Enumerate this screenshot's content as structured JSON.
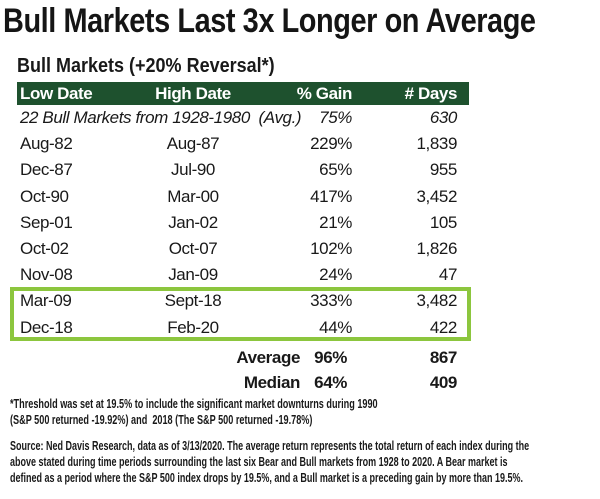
{
  "colors": {
    "header_bg": "#1e512e",
    "header_text": "#ffffff",
    "highlight_border": "#8cc63e",
    "text": "#191919",
    "background": "#ffffff"
  },
  "chart_data": {
    "type": "table",
    "title": "Bull Markets Last 3x Longer on Average",
    "subtitle": "Bull Markets (+20% Reversal*)",
    "columns": [
      "Low Date",
      "High Date",
      "% Gain",
      "# Days"
    ],
    "aggregate_row": {
      "label": "22 Bull Markets from 1928-1980  (Avg.)",
      "gain": "75%",
      "days": "630"
    },
    "rows": [
      {
        "low": "Aug-82",
        "high": "Aug-87",
        "gain": "229%",
        "days": "1,839",
        "highlighted": false
      },
      {
        "low": "Dec-87",
        "high": "Jul-90",
        "gain": "65%",
        "days": "955",
        "highlighted": false
      },
      {
        "low": "Oct-90",
        "high": "Mar-00",
        "gain": "417%",
        "days": "3,452",
        "highlighted": false
      },
      {
        "low": "Sep-01",
        "high": "Jan-02",
        "gain": "21%",
        "days": "105",
        "highlighted": false
      },
      {
        "low": "Oct-02",
        "high": "Oct-07",
        "gain": "102%",
        "days": "1,826",
        "highlighted": false
      },
      {
        "low": "Nov-08",
        "high": "Jan-09",
        "gain": "24%",
        "days": "47",
        "highlighted": false
      },
      {
        "low": "Mar-09",
        "high": "Sept-18",
        "gain": "333%",
        "days": "3,482",
        "highlighted": true
      },
      {
        "low": "Dec-18",
        "high": "Feb-20",
        "gain": "44%",
        "days": "422",
        "highlighted": true
      }
    ],
    "summary": [
      {
        "label": "Average",
        "gain": "96%",
        "days": "867"
      },
      {
        "label": "Median",
        "gain": "64%",
        "days": "409"
      }
    ],
    "footnote_lines": [
      "*Threshold was set at 19.5% to include the significant market downturns during 1990",
      "(S&P 500 returned -19.92%) and  2018 (The S&P 500 returned -19.78%)"
    ],
    "source_lines": [
      "Source: Ned Davis Research, data as of 3/13/2020. The average return represents the total return of each index during the",
      "above stated during time periods surrounding the last six Bear and Bull markets from 1928 to 2020. A Bear market is",
      "defined as a period where the S&P 500 index drops by 19.5%, and a Bull market is a preceding gain by more than 19.5%."
    ]
  }
}
